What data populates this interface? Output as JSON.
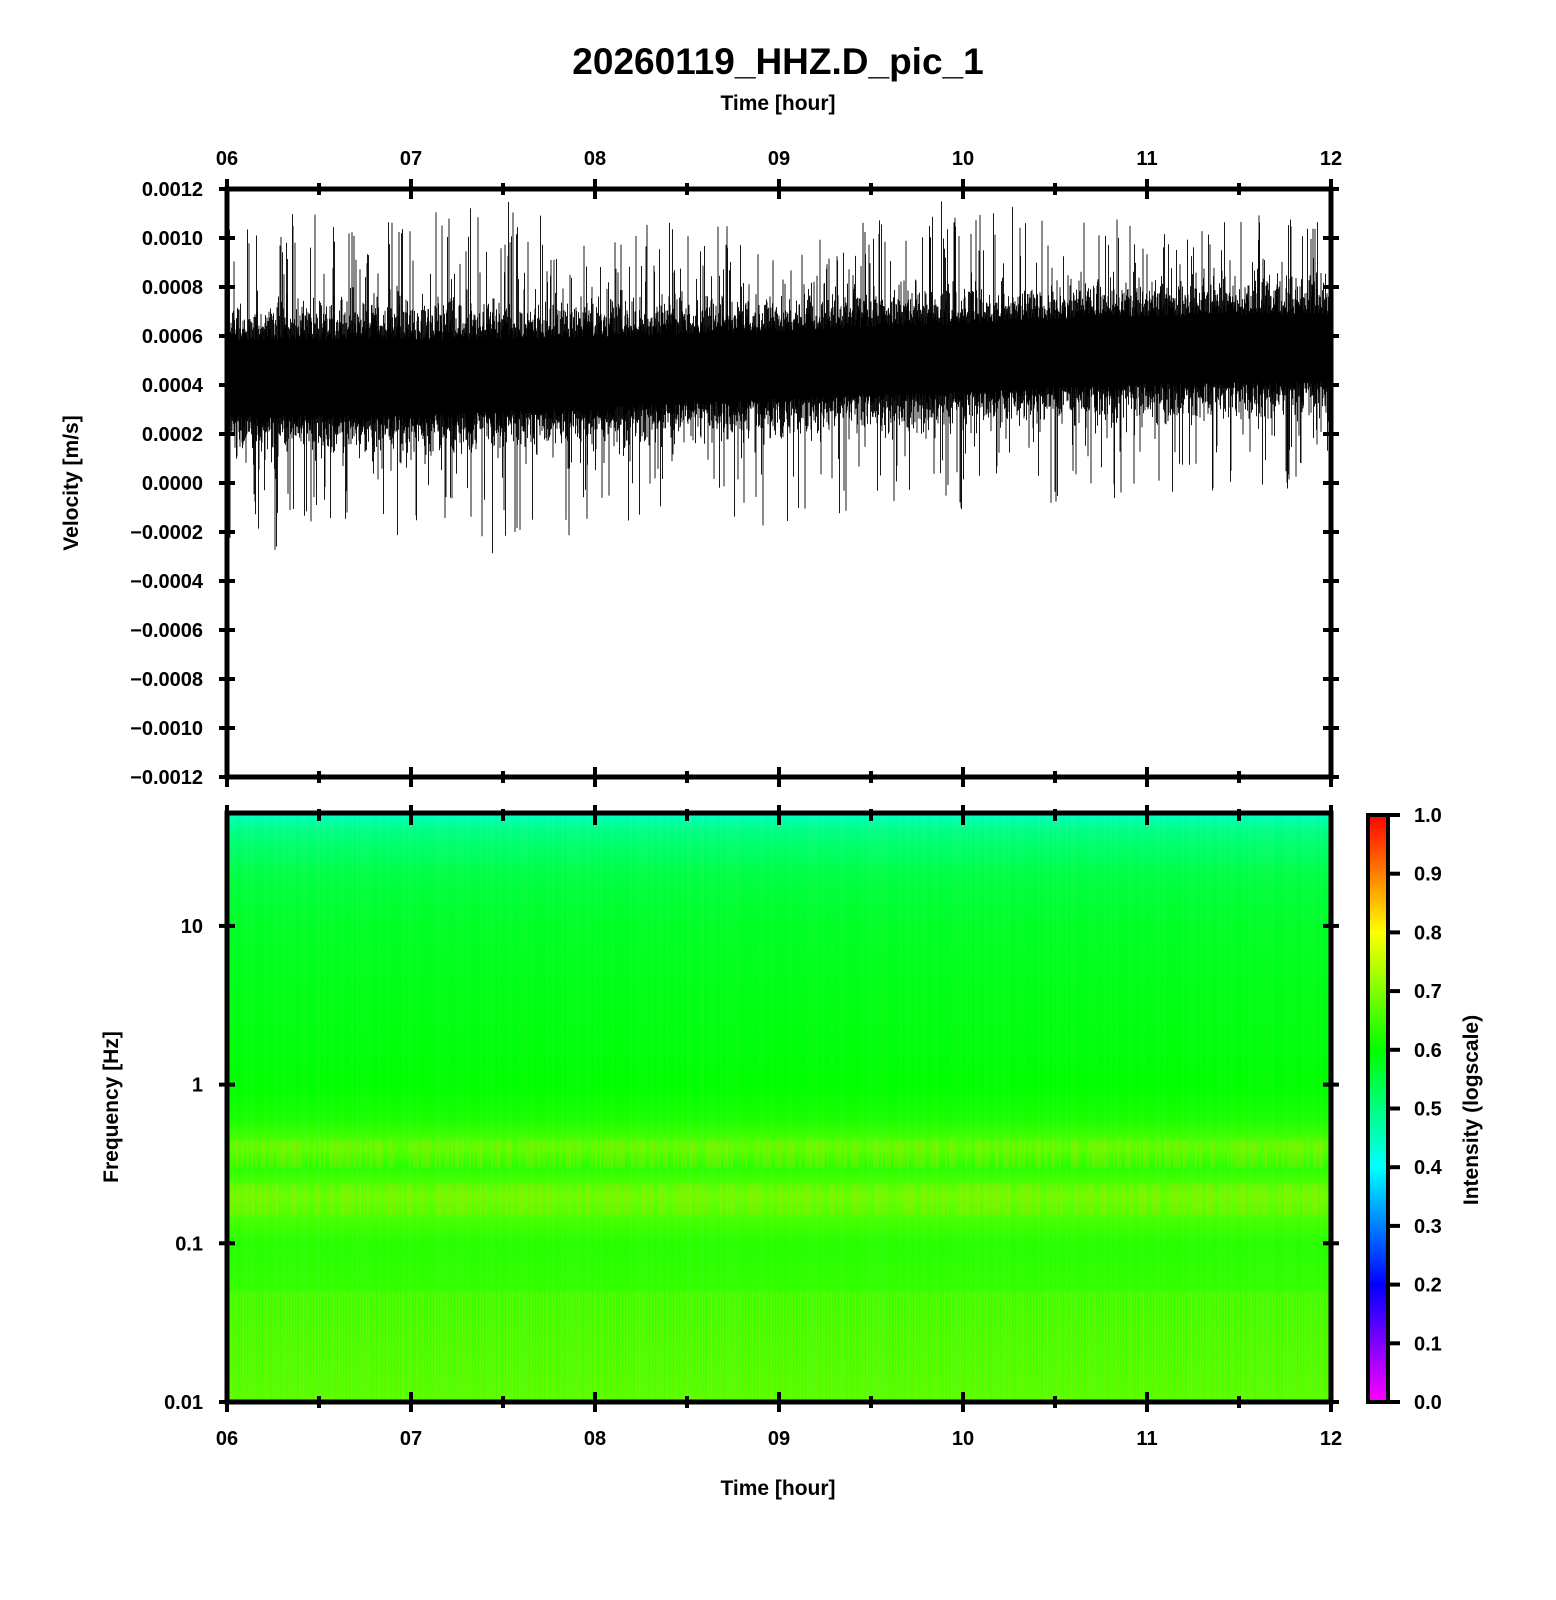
{
  "title": "20260119_HHZ.D_pic_1",
  "chart_data": [
    {
      "type": "line",
      "name": "waveform",
      "xlabel": "Time [hour]",
      "ylabel": "Velocity [m/s]",
      "x_ticks": [
        "06",
        "07",
        "08",
        "09",
        "10",
        "11",
        "12"
      ],
      "xlim": [
        6,
        12
      ],
      "ylim": [
        -0.0012,
        0.0012
      ],
      "y_ticks": [
        "0.0012",
        "0.0010",
        "0.0008",
        "0.0006",
        "0.0004",
        "0.0002",
        "0.0000",
        "−0.0002",
        "−0.0004",
        "−0.0006",
        "−0.0008",
        "−0.0010",
        "−0.0012"
      ],
      "y_tick_values": [
        0.0012,
        0.001,
        0.0008,
        0.0006,
        0.0004,
        0.0002,
        0,
        -0.0002,
        -0.0004,
        -0.0006,
        -0.0008,
        -0.001,
        -0.0012
      ],
      "color": "#000000",
      "envelope": {
        "x": [
          6,
          6.5,
          7,
          7.5,
          8,
          8.5,
          9,
          9.5,
          10,
          10.5,
          11,
          11.5,
          12
        ],
        "mean": [
          0.00043,
          0.00043,
          0.00043,
          0.00044,
          0.00045,
          0.00047,
          0.00048,
          0.0005,
          0.00051,
          0.00053,
          0.00054,
          0.00055,
          0.00055
        ],
        "band_half_width": [
          0.00018,
          0.00018,
          0.00018,
          0.00017,
          0.00017,
          0.00016,
          0.00016,
          0.00016,
          0.00016,
          0.00016,
          0.00016,
          0.00016,
          0.00016
        ],
        "max": [
          0.0011,
          0.0011,
          0.0011,
          0.00117,
          0.001,
          0.0011,
          0.001,
          0.0011,
          0.0012,
          0.0011,
          0.0011,
          0.0011,
          0.0011
        ],
        "min": [
          -0.0003,
          -0.0003,
          -0.0002,
          -0.0003,
          -0.0002,
          -0.0001,
          -0.0002,
          -0.0001,
          -0.00013,
          -0.0001,
          -5e-05,
          -5e-05,
          0
        ]
      }
    },
    {
      "type": "heatmap",
      "name": "spectrogram",
      "xlabel": "Time [hour]",
      "ylabel": "Frequency [Hz]",
      "x_ticks": [
        "06",
        "07",
        "08",
        "09",
        "10",
        "11",
        "12"
      ],
      "xlim": [
        6,
        12
      ],
      "y_scale": "log",
      "ylim": [
        0.01,
        50
      ],
      "y_ticks": [
        "10",
        "1",
        "0.1",
        "0.01"
      ],
      "y_tick_values": [
        10,
        1,
        0.1,
        0.01
      ],
      "intensity_profile": {
        "frequency": [
          50,
          40,
          20,
          10,
          5,
          2,
          1,
          0.6,
          0.4,
          0.3,
          0.2,
          0.1,
          0.05,
          0.02,
          0.01
        ],
        "intensity": [
          0.45,
          0.5,
          0.55,
          0.57,
          0.58,
          0.59,
          0.6,
          0.62,
          0.67,
          0.63,
          0.68,
          0.63,
          0.64,
          0.65,
          0.66
        ]
      },
      "colorbar": {
        "label": "Intensity (logscale)",
        "range": [
          0,
          1
        ],
        "ticks": [
          "1.0",
          "0.9",
          "0.8",
          "0.7",
          "0.6",
          "0.5",
          "0.4",
          "0.3",
          "0.2",
          "0.1",
          "0.0"
        ],
        "tick_values": [
          1,
          0.9,
          0.8,
          0.7,
          0.6,
          0.5,
          0.4,
          0.3,
          0.2,
          0.1,
          0
        ],
        "colormap": [
          "#ff00ff",
          "#0000ff",
          "#00ffff",
          "#00ff00",
          "#ffff00",
          "#ff0000"
        ]
      }
    }
  ]
}
